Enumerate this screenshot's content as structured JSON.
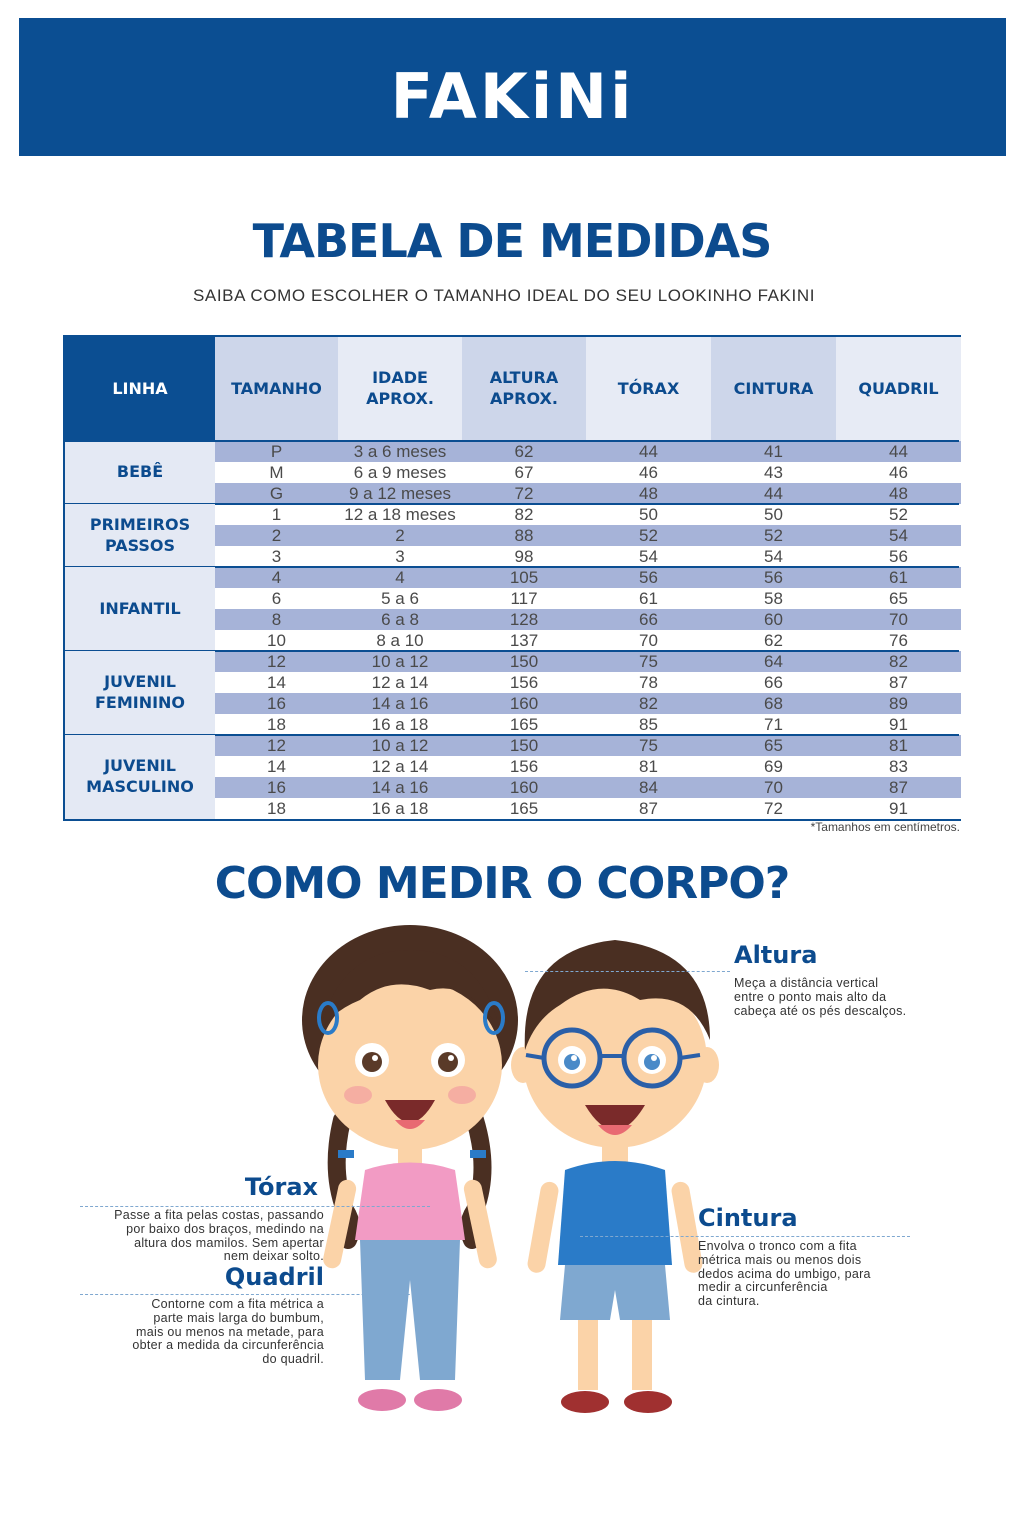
{
  "brand": {
    "logo": "FAKiNi"
  },
  "title": "TABELA DE MEDIDAS",
  "subtitle": "SAIBA COMO ESCOLHER O TAMANHO IDEAL DO SEU LOOKINHO FAKINI",
  "table": {
    "headers": [
      "LINHA",
      "TAMANHO",
      "IDADE\nAPROX.",
      "ALTURA\nAPROX.",
      "TÓRAX",
      "CINTURA",
      "QUADRIL"
    ],
    "groups": [
      {
        "name": "BEBÊ",
        "rows": 3
      },
      {
        "name": "PRIMEIROS\nPASSOS",
        "rows": 3
      },
      {
        "name": "INFANTIL",
        "rows": 4
      },
      {
        "name": "JUVENIL\nFEMININO",
        "rows": 4
      },
      {
        "name": "JUVENIL\nMASCULINO",
        "rows": 4
      }
    ],
    "rows": [
      [
        "P",
        "3 a 6 meses",
        "62",
        "44",
        "41",
        "44"
      ],
      [
        "M",
        "6 a 9 meses",
        "67",
        "46",
        "43",
        "46"
      ],
      [
        "G",
        "9 a 12 meses",
        "72",
        "48",
        "44",
        "48"
      ],
      [
        "1",
        "12 a 18 meses",
        "82",
        "50",
        "50",
        "52"
      ],
      [
        "2",
        "2",
        "88",
        "52",
        "52",
        "54"
      ],
      [
        "3",
        "3",
        "98",
        "54",
        "54",
        "56"
      ],
      [
        "4",
        "4",
        "105",
        "56",
        "56",
        "61"
      ],
      [
        "6",
        "5 a 6",
        "117",
        "61",
        "58",
        "65"
      ],
      [
        "8",
        "6 a 8",
        "128",
        "66",
        "60",
        "70"
      ],
      [
        "10",
        "8 a 10",
        "137",
        "70",
        "62",
        "76"
      ],
      [
        "12",
        "10 a 12",
        "150",
        "75",
        "64",
        "82"
      ],
      [
        "14",
        "12 a 14",
        "156",
        "78",
        "66",
        "87"
      ],
      [
        "16",
        "14 a 16",
        "160",
        "82",
        "68",
        "89"
      ],
      [
        "18",
        "16 a 18",
        "165",
        "85",
        "71",
        "91"
      ],
      [
        "12",
        "10 a 12",
        "150",
        "75",
        "65",
        "81"
      ],
      [
        "14",
        "12 a 14",
        "156",
        "81",
        "69",
        "83"
      ],
      [
        "16",
        "14 a 16",
        "160",
        "84",
        "70",
        "87"
      ],
      [
        "18",
        "16 a 18",
        "165",
        "87",
        "72",
        "91"
      ]
    ],
    "footnote": "*Tamanhos em centímetros."
  },
  "howto": {
    "title": "COMO MEDIR O CORPO?",
    "altura": {
      "title": "Altura",
      "text": "Meça a distância vertical\nentre o ponto mais alto da\ncabeça até os pés descalços."
    },
    "torax": {
      "title": "Tórax",
      "text": "Passe a fita pelas costas, passando\npor baixo dos braços, medindo na\naltura dos mamilos. Sem apertar\nnem deixar solto."
    },
    "quadril": {
      "title": "Quadril",
      "text": "Contorne com a fita métrica a\nparte mais larga do bumbum,\nmais ou menos na metade, para\nobter a medida da circunferência\ndo quadril."
    },
    "cintura": {
      "title": "Cintura",
      "text": "Envolva o tronco com a fita\nmétrica mais ou menos dois\ndedos acima do umbigo, para\nmedir a  circunferência\nda cintura."
    }
  },
  "colors": {
    "brand_blue": "#0b4e92",
    "row_dark": "#a6b3d8",
    "girl_shirt": "#f29bc4",
    "boy_shirt": "#2a7bc8"
  }
}
